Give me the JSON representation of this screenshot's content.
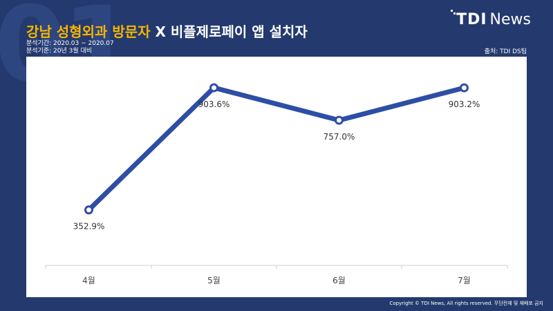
{
  "background_numeral": "01",
  "title": {
    "highlight": "강남 성형외과 방문자",
    "rest": " X 비플제로페이 앱 설치자"
  },
  "meta": {
    "period": "분석기간: 2020.03 ~ 2020.07",
    "baseline": "분석기준: 20년 3월 대비"
  },
  "source": "출처: TDI DS팀",
  "logo": {
    "tdi": "TDI",
    "news": "News"
  },
  "copyright": "Copyright © TDI News, All rights reserved. 무단전재 및 재배포 금지",
  "colors": {
    "background": "#243a6e",
    "line": "#2d4ea5",
    "highlight": "#f7b500"
  },
  "chart_data": {
    "type": "line",
    "categories": [
      "4월",
      "5월",
      "6월",
      "7월"
    ],
    "values": [
      352.9,
      903.6,
      757.0,
      903.2
    ],
    "data_labels": [
      "352.9%",
      "903.6%",
      "757.0%",
      "903.2%"
    ],
    "ylim": [
      0,
      1000
    ],
    "grid": false,
    "legend": "none"
  }
}
